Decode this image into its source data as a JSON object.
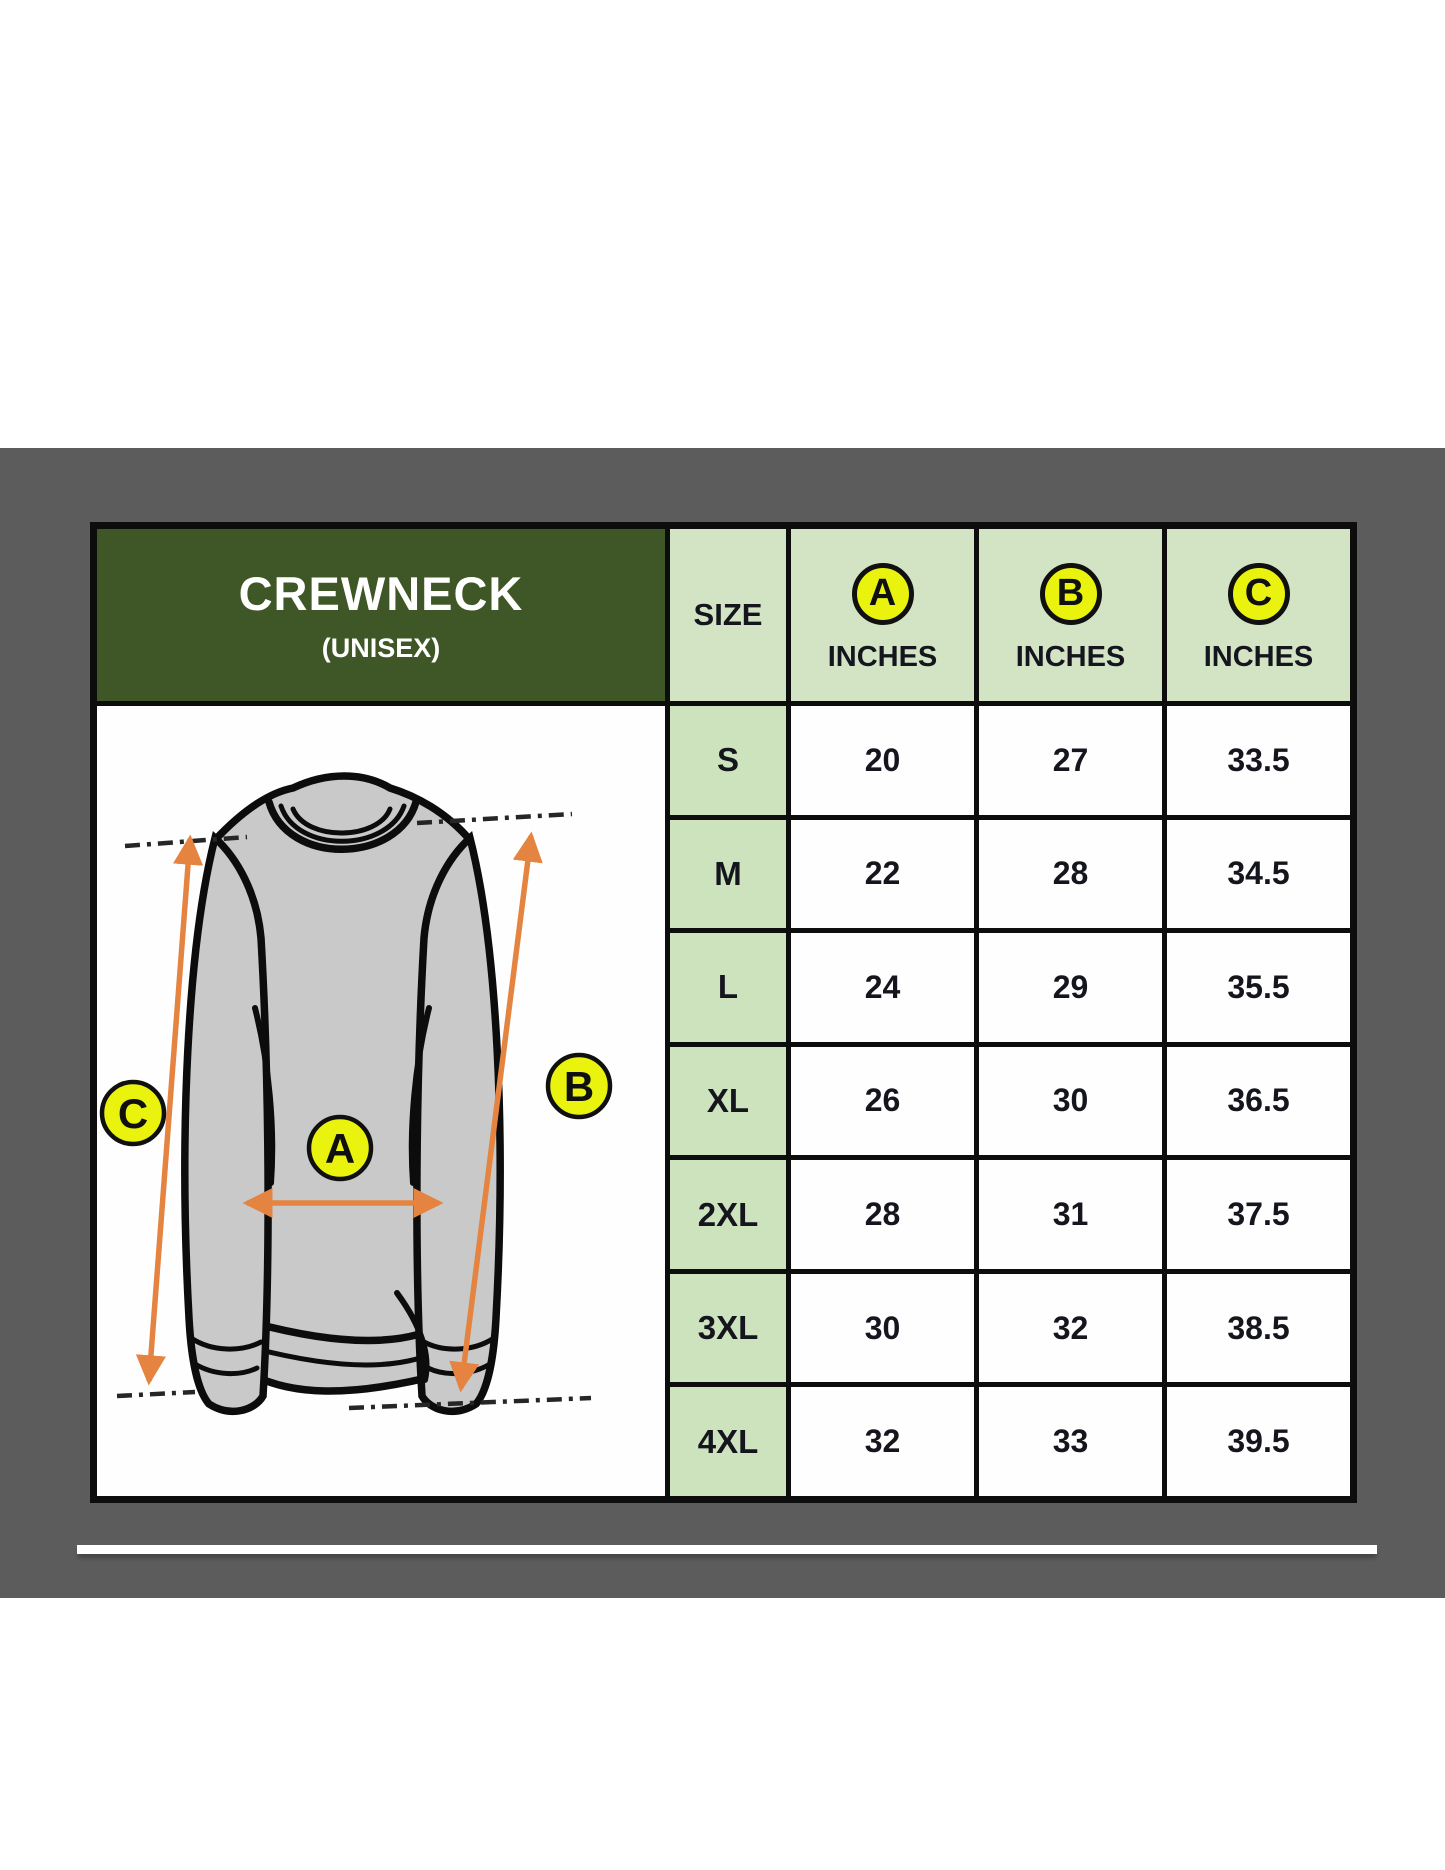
{
  "panel": {
    "title": "CREWNECK",
    "subtitle": "(UNISEX)"
  },
  "diagram": {
    "markers": [
      "A",
      "B",
      "C"
    ]
  },
  "table": {
    "columns": [
      {
        "label": "SIZE"
      },
      {
        "badge": "A",
        "label": "INCHES"
      },
      {
        "badge": "B",
        "label": "INCHES"
      },
      {
        "badge": "C",
        "label": "INCHES"
      }
    ],
    "rows": [
      {
        "size": "S",
        "a": "20",
        "b": "27",
        "c": "33.5"
      },
      {
        "size": "M",
        "a": "22",
        "b": "28",
        "c": "34.5"
      },
      {
        "size": "L",
        "a": "24",
        "b": "29",
        "c": "35.5"
      },
      {
        "size": "XL",
        "a": "26",
        "b": "30",
        "c": "36.5"
      },
      {
        "size": "2XL",
        "a": "28",
        "b": "31",
        "c": "37.5"
      },
      {
        "size": "3XL",
        "a": "30",
        "b": "32",
        "c": "38.5"
      },
      {
        "size": "4XL",
        "a": "32",
        "b": "33",
        "c": "39.5"
      }
    ]
  },
  "chart_data": {
    "type": "table",
    "title": "CREWNECK (UNISEX)",
    "columns": [
      "SIZE",
      "A INCHES",
      "B INCHES",
      "C INCHES"
    ],
    "rows": [
      [
        "S",
        20,
        27,
        33.5
      ],
      [
        "M",
        22,
        28,
        34.5
      ],
      [
        "L",
        24,
        29,
        35.5
      ],
      [
        "XL",
        26,
        30,
        36.5
      ],
      [
        "2XL",
        28,
        31,
        37.5
      ],
      [
        "3XL",
        30,
        32,
        38.5
      ],
      [
        "4XL",
        32,
        33,
        39.5
      ]
    ]
  },
  "colors": {
    "band_gray": "#5c5c5c",
    "border_black": "#0d0d0d",
    "header_green": "#3f5626",
    "cell_green_light": "#d3e4c5",
    "cell_green_size": "#cde3be",
    "cell_white": "#fefefe",
    "badge_yellow": "#e9f30e",
    "arrow_orange": "#e58440",
    "text_dark": "#15151e",
    "title_white": "#ffffff"
  }
}
